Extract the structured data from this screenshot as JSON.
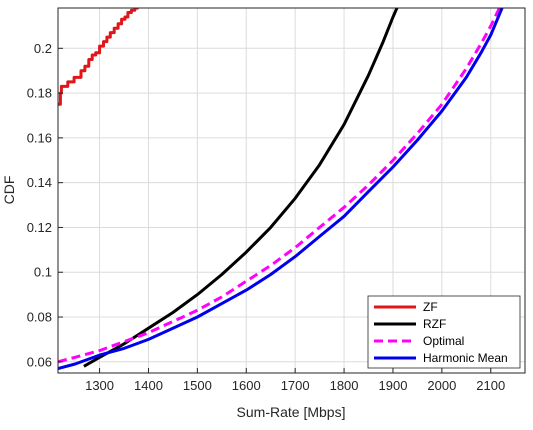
{
  "chart_data": {
    "type": "line",
    "xlabel": "Sum-Rate [Mbps]",
    "ylabel": "CDF",
    "xlim": [
      1215,
      2170
    ],
    "ylim": [
      0.055,
      0.218
    ],
    "xticks": [
      1300,
      1400,
      1500,
      1600,
      1700,
      1800,
      1900,
      2000,
      2100
    ],
    "yticks": [
      0.06,
      0.08,
      0.1,
      0.12,
      0.14,
      0.16,
      0.18,
      0.2
    ],
    "xtick_labels": [
      "1300",
      "1400",
      "1500",
      "1600",
      "1700",
      "1800",
      "1900",
      "2000",
      "2100"
    ],
    "ytick_labels": [
      "0.06",
      "0.08",
      "0.1",
      "0.12",
      "0.14",
      "0.16",
      "0.18",
      "0.2"
    ],
    "grid": true,
    "legend_position": "bottom-right",
    "series": [
      {
        "name": "ZF",
        "color": "#e0161b",
        "dash": "solid",
        "step": true,
        "x": [
          1215,
          1220,
          1222,
          1235,
          1248,
          1262,
          1270,
          1278,
          1285,
          1292,
          1300,
          1308,
          1315,
          1322,
          1330,
          1338,
          1345,
          1352,
          1358,
          1365,
          1372,
          1380
        ],
        "y": [
          0.175,
          0.18,
          0.183,
          0.185,
          0.187,
          0.19,
          0.192,
          0.195,
          0.197,
          0.198,
          0.201,
          0.203,
          0.205,
          0.207,
          0.209,
          0.211,
          0.213,
          0.214,
          0.216,
          0.217,
          0.218,
          0.218
        ]
      },
      {
        "name": "RZF",
        "color": "#000000",
        "dash": "solid",
        "x": [
          1268,
          1300,
          1350,
          1400,
          1450,
          1500,
          1550,
          1600,
          1650,
          1700,
          1750,
          1800,
          1850,
          1880,
          1900,
          1910
        ],
        "y": [
          0.058,
          0.062,
          0.068,
          0.075,
          0.082,
          0.09,
          0.099,
          0.109,
          0.12,
          0.133,
          0.148,
          0.166,
          0.188,
          0.203,
          0.214,
          0.219
        ]
      },
      {
        "name": "Optimal",
        "color": "#ff00ff",
        "dash": "dashed",
        "x": [
          1215,
          1250,
          1300,
          1350,
          1400,
          1450,
          1500,
          1550,
          1600,
          1650,
          1700,
          1750,
          1800,
          1850,
          1900,
          1950,
          2000,
          2050,
          2080,
          2100,
          2120
        ],
        "y": [
          0.06,
          0.062,
          0.065,
          0.069,
          0.073,
          0.078,
          0.083,
          0.089,
          0.096,
          0.103,
          0.111,
          0.12,
          0.129,
          0.139,
          0.15,
          0.162,
          0.175,
          0.191,
          0.202,
          0.21,
          0.219
        ]
      },
      {
        "name": "Harmonic Mean",
        "color": "#0000ee",
        "dash": "solid",
        "x": [
          1215,
          1250,
          1300,
          1350,
          1400,
          1450,
          1500,
          1550,
          1600,
          1650,
          1700,
          1750,
          1800,
          1850,
          1900,
          1950,
          2000,
          2050,
          2080,
          2100,
          2125
        ],
        "y": [
          0.057,
          0.059,
          0.063,
          0.066,
          0.07,
          0.075,
          0.08,
          0.086,
          0.092,
          0.099,
          0.107,
          0.116,
          0.125,
          0.136,
          0.147,
          0.159,
          0.172,
          0.187,
          0.198,
          0.206,
          0.219
        ]
      }
    ]
  }
}
